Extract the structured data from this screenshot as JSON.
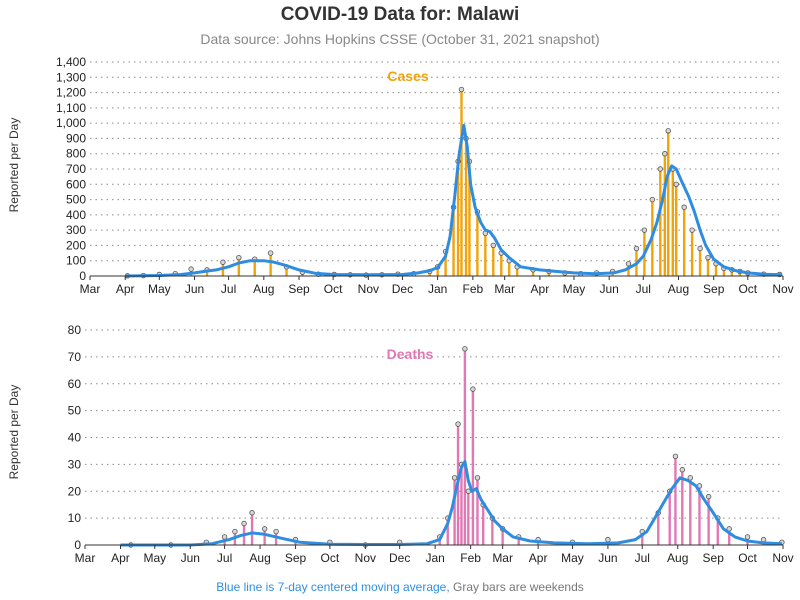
{
  "title": "COVID-19 Data for: Malawi",
  "subtitle": "Data source: Johns Hopkins CSSE (October 31, 2021 snapshot)",
  "footnote": {
    "blue_part": "Blue line is 7-day centered moving average,",
    "gray_part": "Gray bars are weekends"
  },
  "colors": {
    "cases": "#f0a30a",
    "deaths": "#e377b4",
    "moving_average": "#2e8de0",
    "marker_fill": "#d8d8d8"
  },
  "chart_data": [
    {
      "type": "bar",
      "label": "Cases",
      "ylabel": "Reported per Day",
      "ylim": [
        0,
        1400
      ],
      "yticks": [
        0,
        100,
        200,
        300,
        400,
        500,
        600,
        700,
        800,
        900,
        1000,
        1100,
        1200,
        1300,
        1400
      ],
      "ytick_labels": [
        "0",
        "100",
        "200",
        "300",
        "400",
        "500",
        "600",
        "700",
        "800",
        "900",
        "1,000",
        "1,100",
        "1,200",
        "1,300",
        "1,400"
      ],
      "x_ticks": [
        "Mar",
        "Apr",
        "May",
        "Jun",
        "Jul",
        "Aug",
        "Sep",
        "Oct",
        "Nov",
        "Dec",
        "Jan",
        "Feb",
        "Mar",
        "Apr",
        "May",
        "Jun",
        "Jul",
        "Aug",
        "Sep",
        "Oct",
        "Nov"
      ],
      "grid": true,
      "series": [
        {
          "name": "Cases",
          "x": [
            "2020-04-03",
            "2020-04-17",
            "2020-05-01",
            "2020-05-15",
            "2020-05-29",
            "2020-06-12",
            "2020-06-26",
            "2020-07-10",
            "2020-07-24",
            "2020-08-07",
            "2020-08-21",
            "2020-09-04",
            "2020-09-18",
            "2020-10-02",
            "2020-10-16",
            "2020-10-30",
            "2020-11-13",
            "2020-11-27",
            "2020-12-11",
            "2020-12-25",
            "2021-01-01",
            "2021-01-08",
            "2021-01-15",
            "2021-01-19",
            "2021-01-22",
            "2021-01-26",
            "2021-01-29",
            "2021-02-05",
            "2021-02-12",
            "2021-02-19",
            "2021-02-26",
            "2021-03-05",
            "2021-03-12",
            "2021-03-26",
            "2021-04-09",
            "2021-04-23",
            "2021-05-07",
            "2021-05-21",
            "2021-06-04",
            "2021-06-18",
            "2021-06-25",
            "2021-07-02",
            "2021-07-09",
            "2021-07-16",
            "2021-07-20",
            "2021-07-23",
            "2021-07-27",
            "2021-07-30",
            "2021-08-06",
            "2021-08-13",
            "2021-08-20",
            "2021-08-27",
            "2021-09-03",
            "2021-09-10",
            "2021-09-17",
            "2021-09-24",
            "2021-10-01",
            "2021-10-15",
            "2021-10-29"
          ],
          "values": [
            1,
            3,
            10,
            15,
            45,
            40,
            90,
            120,
            110,
            150,
            60,
            25,
            12,
            10,
            8,
            6,
            8,
            12,
            15,
            30,
            60,
            160,
            450,
            750,
            1220,
            900,
            750,
            420,
            280,
            200,
            150,
            100,
            60,
            40,
            30,
            20,
            15,
            20,
            30,
            80,
            180,
            300,
            500,
            700,
            800,
            950,
            700,
            600,
            450,
            300,
            180,
            120,
            80,
            50,
            40,
            30,
            20,
            12,
            10
          ]
        },
        {
          "name": "7-day centered moving average",
          "x": [
            "2020-04-01",
            "2020-05-01",
            "2020-05-20",
            "2020-06-01",
            "2020-06-10",
            "2020-06-20",
            "2020-07-01",
            "2020-07-10",
            "2020-07-20",
            "2020-08-01",
            "2020-08-10",
            "2020-08-20",
            "2020-09-01",
            "2020-09-15",
            "2020-10-01",
            "2020-11-01",
            "2020-12-01",
            "2020-12-15",
            "2020-12-25",
            "2021-01-01",
            "2021-01-08",
            "2021-01-12",
            "2021-01-16",
            "2021-01-20",
            "2021-01-24",
            "2021-01-27",
            "2021-01-30",
            "2021-02-03",
            "2021-02-08",
            "2021-02-12",
            "2021-02-16",
            "2021-02-20",
            "2021-02-26",
            "2021-03-05",
            "2021-03-15",
            "2021-04-01",
            "2021-04-15",
            "2021-05-01",
            "2021-05-20",
            "2021-06-05",
            "2021-06-15",
            "2021-06-25",
            "2021-07-01",
            "2021-07-08",
            "2021-07-13",
            "2021-07-18",
            "2021-07-22",
            "2021-07-26",
            "2021-07-30",
            "2021-08-05",
            "2021-08-10",
            "2021-08-15",
            "2021-08-20",
            "2021-08-25",
            "2021-09-01",
            "2021-09-10",
            "2021-09-20",
            "2021-10-01",
            "2021-10-15",
            "2021-10-31"
          ],
          "values": [
            0,
            3,
            10,
            20,
            30,
            40,
            60,
            85,
            100,
            100,
            90,
            70,
            40,
            18,
            10,
            8,
            10,
            20,
            35,
            55,
            130,
            260,
            520,
            800,
            985,
            850,
            600,
            450,
            350,
            300,
            290,
            250,
            170,
            120,
            60,
            40,
            30,
            20,
            15,
            20,
            40,
            80,
            130,
            240,
            350,
            500,
            650,
            720,
            700,
            600,
            520,
            420,
            300,
            200,
            110,
            60,
            35,
            20,
            12,
            8
          ]
        }
      ]
    },
    {
      "type": "bar",
      "label": "Deaths",
      "ylabel": "Reported per Day",
      "ylim": [
        0,
        80
      ],
      "yticks": [
        0,
        10,
        20,
        30,
        40,
        50,
        60,
        70,
        80
      ],
      "ytick_labels": [
        "0",
        "10",
        "20",
        "30",
        "40",
        "50",
        "60",
        "70",
        "80"
      ],
      "x_ticks": [
        "Mar",
        "Apr",
        "May",
        "Jun",
        "Jul",
        "Aug",
        "Sep",
        "Oct",
        "Nov",
        "Dec",
        "Jan",
        "Feb",
        "Mar",
        "Apr",
        "May",
        "Jun",
        "Jul",
        "Aug",
        "Sep",
        "Oct",
        "Nov"
      ],
      "grid": true,
      "series": [
        {
          "name": "Deaths",
          "x": [
            "2020-04-10",
            "2020-05-15",
            "2020-06-15",
            "2020-07-01",
            "2020-07-10",
            "2020-07-18",
            "2020-07-25",
            "2020-08-05",
            "2020-08-15",
            "2020-09-01",
            "2020-10-01",
            "2020-11-01",
            "2020-12-01",
            "2021-01-05",
            "2021-01-12",
            "2021-01-18",
            "2021-01-21",
            "2021-01-24",
            "2021-01-27",
            "2021-01-30",
            "2021-02-03",
            "2021-02-07",
            "2021-02-12",
            "2021-02-20",
            "2021-03-01",
            "2021-03-15",
            "2021-04-01",
            "2021-05-01",
            "2021-06-01",
            "2021-07-01",
            "2021-07-15",
            "2021-07-25",
            "2021-07-30",
            "2021-08-05",
            "2021-08-12",
            "2021-08-20",
            "2021-08-28",
            "2021-09-05",
            "2021-09-15",
            "2021-10-01",
            "2021-10-15",
            "2021-10-31"
          ],
          "values": [
            0,
            0,
            1,
            3,
            5,
            8,
            12,
            6,
            5,
            2,
            1,
            0,
            1,
            3,
            10,
            25,
            45,
            30,
            73,
            20,
            58,
            25,
            15,
            10,
            6,
            3,
            2,
            1,
            2,
            5,
            12,
            20,
            33,
            28,
            25,
            22,
            18,
            10,
            6,
            3,
            2,
            1
          ]
        },
        {
          "name": "7-day centered moving average",
          "x": [
            "2020-04-01",
            "2020-06-01",
            "2020-06-20",
            "2020-07-05",
            "2020-07-15",
            "2020-07-25",
            "2020-08-05",
            "2020-08-20",
            "2020-09-05",
            "2020-10-01",
            "2020-11-01",
            "2020-12-01",
            "2020-12-25",
            "2021-01-05",
            "2021-01-12",
            "2021-01-16",
            "2021-01-20",
            "2021-01-24",
            "2021-01-27",
            "2021-01-30",
            "2021-02-02",
            "2021-02-06",
            "2021-02-10",
            "2021-02-16",
            "2021-02-22",
            "2021-03-01",
            "2021-03-10",
            "2021-03-25",
            "2021-04-15",
            "2021-05-15",
            "2021-06-10",
            "2021-06-25",
            "2021-07-05",
            "2021-07-12",
            "2021-07-20",
            "2021-07-27",
            "2021-08-03",
            "2021-08-10",
            "2021-08-17",
            "2021-08-24",
            "2021-09-01",
            "2021-09-10",
            "2021-09-20",
            "2021-10-01",
            "2021-10-15",
            "2021-10-31"
          ],
          "values": [
            0,
            0,
            0.5,
            2,
            3.5,
            4.5,
            4,
            2.5,
            1,
            0.3,
            0.2,
            0.2,
            0.5,
            2,
            8,
            14,
            22,
            29,
            31,
            24,
            20,
            21,
            17,
            13,
            9,
            6,
            3,
            1.5,
            0.8,
            0.5,
            0.8,
            2,
            5,
            10,
            16,
            21,
            25,
            24,
            22,
            17,
            12,
            6,
            3,
            1.5,
            0.8,
            0.5
          ]
        }
      ]
    }
  ]
}
